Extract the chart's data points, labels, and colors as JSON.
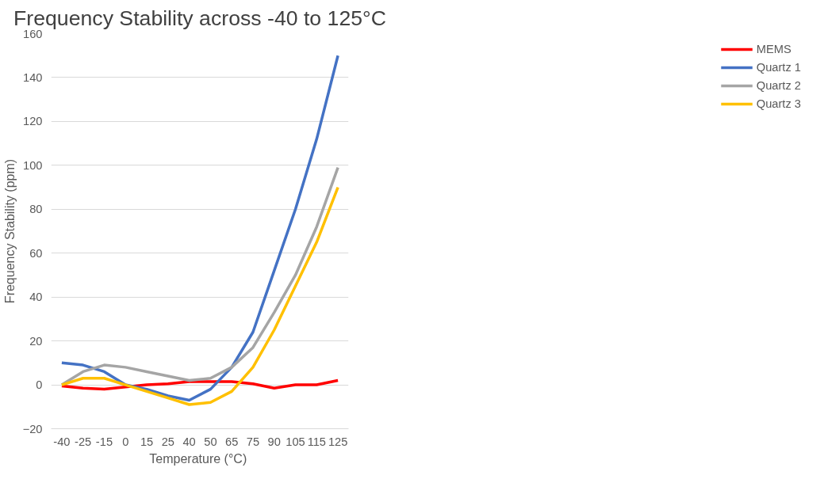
{
  "chart_data": {
    "type": "line",
    "title": "Frequency Stability across -40 to 125°C",
    "xlabel": "Temperature  (°C)",
    "ylabel": "Frequency Stability (ppm)",
    "categories": [
      "-40",
      "-25",
      "-15",
      "0",
      "15",
      "25",
      "40",
      "50",
      "65",
      "75",
      "90",
      "105",
      "115",
      "125"
    ],
    "series": [
      {
        "name": "MEMS",
        "color": "#ff0000",
        "values": [
          -0.5,
          -1.5,
          -2,
          -1,
          0,
          0.5,
          1.5,
          1.5,
          1.5,
          0.5,
          -1.5,
          0,
          0,
          2
        ]
      },
      {
        "name": "Quartz 1",
        "color": "#4472c4",
        "values": [
          10,
          9,
          6,
          0,
          -2,
          -5,
          -7,
          -2,
          8,
          24,
          52,
          80,
          112,
          150
        ]
      },
      {
        "name": "Quartz 2",
        "color": "#a5a5a5",
        "values": [
          0,
          6,
          9,
          8,
          6,
          4,
          2,
          3,
          8,
          17,
          33,
          50,
          72,
          99
        ]
      },
      {
        "name": "Quartz 3",
        "color": "#ffc000",
        "values": [
          0,
          3,
          3,
          0,
          -3,
          -6,
          -9,
          -8,
          -3,
          8,
          25,
          45,
          65,
          90
        ]
      }
    ],
    "ylim": [
      -20,
      160
    ],
    "yticks": [
      -20,
      0,
      20,
      40,
      60,
      80,
      100,
      120,
      140,
      160
    ],
    "grid": "y",
    "legend": "right",
    "marker": "none",
    "line_style": "solid"
  }
}
